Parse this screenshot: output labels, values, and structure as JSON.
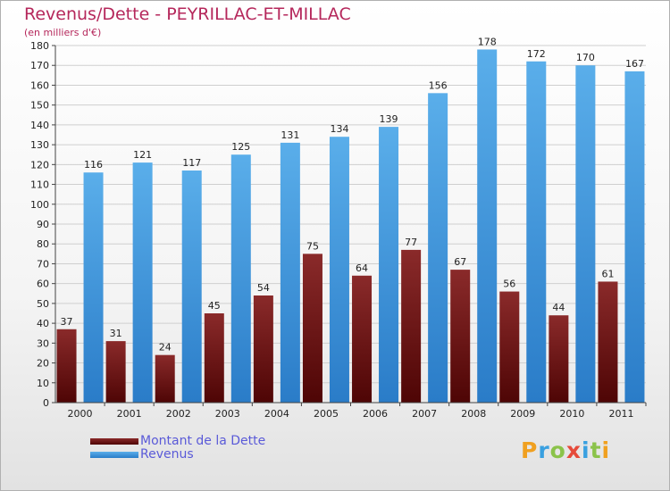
{
  "title": "Revenus/Dette - PEYRILLAC-ET-MILLAC",
  "subtitle": "(en milliers d'€)",
  "logo": {
    "letters": [
      "P",
      "r",
      "o",
      "x",
      "i",
      "t",
      "i"
    ],
    "colors": [
      "#f0a020",
      "#3aa0e0",
      "#8bc34a",
      "#e64a3a",
      "#3aa0e0",
      "#8bc34a",
      "#f0a020"
    ]
  },
  "chart_data": {
    "type": "bar",
    "categories": [
      "2000",
      "2001",
      "2002",
      "2003",
      "2004",
      "2005",
      "2006",
      "2007",
      "2008",
      "2009",
      "2010",
      "2011"
    ],
    "series": [
      {
        "name": "Montant de la Dette",
        "color": "#7a1a1a",
        "values": [
          37,
          31,
          24,
          45,
          54,
          75,
          64,
          77,
          67,
          56,
          44,
          61
        ]
      },
      {
        "name": "Revenus",
        "color": "#3a8fdc",
        "values": [
          116,
          121,
          117,
          125,
          131,
          134,
          139,
          156,
          178,
          172,
          170,
          167
        ]
      }
    ],
    "yticks": [
      0,
      10,
      20,
      30,
      40,
      50,
      60,
      70,
      80,
      90,
      100,
      110,
      120,
      130,
      140,
      150,
      160,
      170,
      180
    ],
    "ylim": [
      0,
      180
    ],
    "grid": true,
    "legend": "bottom-left"
  }
}
